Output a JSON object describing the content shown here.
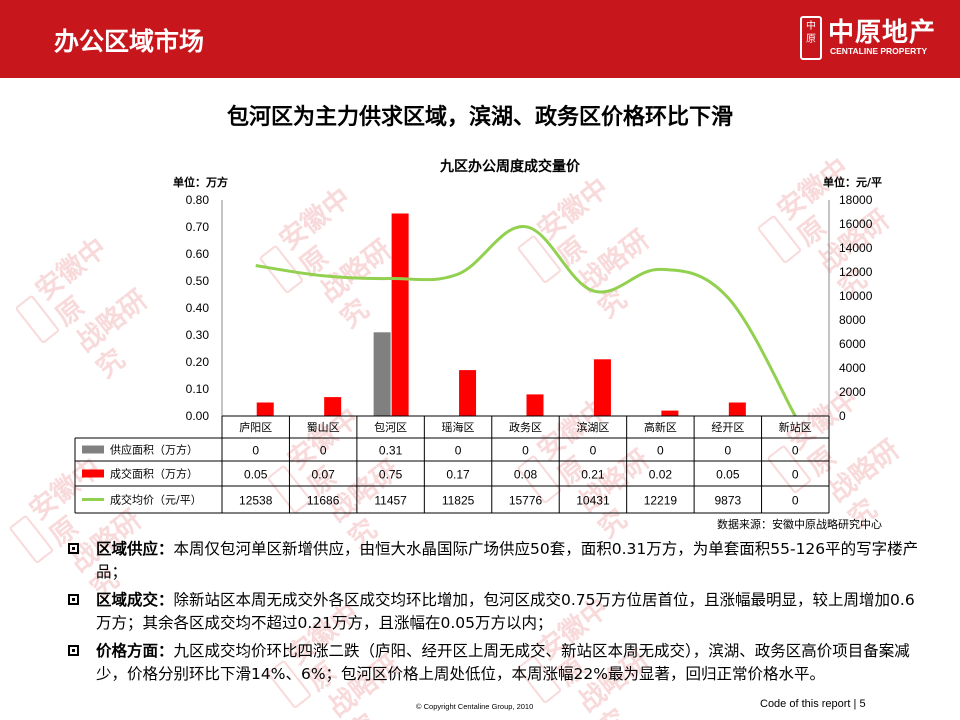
{
  "header": {
    "title": "办公区域市场",
    "logo_cn": "中原地产",
    "logo_en": "CENTALINE PROPERTY",
    "logo_seal": "中原"
  },
  "headline": "包河区为主力供求区域，滨湖、政务区价格环比下滑",
  "watermark": {
    "line1": "安徽中原",
    "line2": "战略研究",
    "seal": "中原"
  },
  "colors": {
    "header_red": "#c8161d",
    "supply_bar": "#808080",
    "deal_bar": "#ff0000",
    "price_line": "#92d050"
  },
  "chart_data": {
    "type": "bar",
    "title": "九区办公周度成交量价",
    "y_left_label": "单位：万方",
    "y_right_label": "单位：元/平",
    "categories": [
      "庐阳区",
      "蜀山区",
      "包河区",
      "瑶海区",
      "政务区",
      "滨湖区",
      "高新区",
      "经开区",
      "新站区"
    ],
    "y_left_ticks": [
      "0.80",
      "0.70",
      "0.60",
      "0.50",
      "0.40",
      "0.30",
      "0.20",
      "0.10",
      "0.00"
    ],
    "y_right_ticks": [
      "18000",
      "16000",
      "14000",
      "12000",
      "10000",
      "8000",
      "6000",
      "4000",
      "2000",
      "0"
    ],
    "ylim_left": [
      0,
      0.8
    ],
    "ylim_right": [
      0,
      18000
    ],
    "series": [
      {
        "name": "供应面积（万方）",
        "type": "bar",
        "axis": "left",
        "color": "#808080",
        "values": [
          0,
          0,
          0.31,
          0,
          0,
          0,
          0,
          0,
          0
        ],
        "labels": [
          "0",
          "0",
          "0.31",
          "0",
          "0",
          "0",
          "0",
          "0",
          "0"
        ]
      },
      {
        "name": "成交面积（万方）",
        "type": "bar",
        "axis": "left",
        "color": "#ff0000",
        "values": [
          0.05,
          0.07,
          0.75,
          0.17,
          0.08,
          0.21,
          0.02,
          0.05,
          0
        ],
        "labels": [
          "0.05",
          "0.07",
          "0.75",
          "0.17",
          "0.08",
          "0.21",
          "0.02",
          "0.05",
          "0"
        ]
      },
      {
        "name": "成交均价（元/平）",
        "type": "line",
        "axis": "right",
        "color": "#92d050",
        "values": [
          12538,
          11686,
          11457,
          11825,
          15776,
          10431,
          12219,
          9873,
          0
        ],
        "labels": [
          "12538",
          "11686",
          "11457",
          "11825",
          "15776",
          "10431",
          "12219",
          "9873",
          "0"
        ]
      }
    ],
    "source": "数据来源：安徽中原战略研究中心",
    "grid": false,
    "legend": "data-table"
  },
  "bullets": [
    {
      "label": "区域供应：",
      "text": "本周仅包河单区新增供应，由恒大水晶国际广场供应50套，面积0.31万方，为单套面积55-126平的写字楼产品；"
    },
    {
      "label": "区域成交：",
      "text": "除新站区本周无成交外各区成交均环比增加，包河区成交0.75万方位居首位，且涨幅最明显，较上周增加0.6万方；其余各区成交均不超过0.21万方，且涨幅在0.05万方以内；"
    },
    {
      "label": "价格方面：",
      "text": "九区成交均价环比四涨二跌（庐阳、经开区上周无成交、新站区本周无成交），滨湖、政务区高价项目备案减少，价格分别环比下滑14%、6%；包河区价格上周处低位，本周涨幅22%最为显著，回归正常价格水平。"
    }
  ],
  "footer": {
    "copyright": "© Copyright  Centaline Group, 2010",
    "code": "Code of this report  |  5"
  }
}
